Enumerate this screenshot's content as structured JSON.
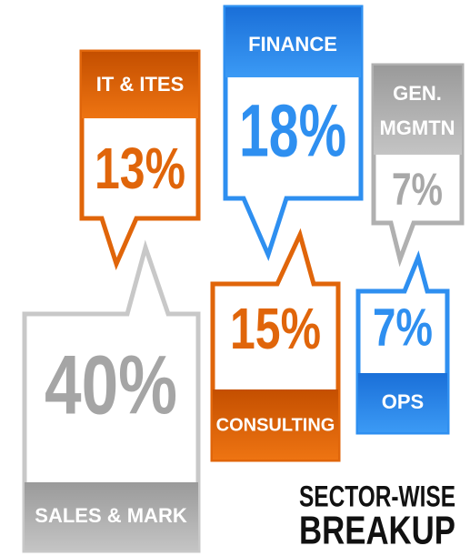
{
  "callouts": [
    {
      "label": "IT & ITES",
      "value": "13%"
    },
    {
      "label": "FINANCE",
      "value": "18%"
    },
    {
      "label": [
        "GEN.",
        "MGMTN"
      ],
      "value": "7%"
    },
    {
      "label": "SALES & MARK",
      "value": "40%"
    },
    {
      "label": "CONSULTING",
      "value": "15%"
    },
    {
      "label": "OPS",
      "value": "7%"
    }
  ],
  "title": [
    "SECTOR-WISE",
    "BREAKUP"
  ]
}
